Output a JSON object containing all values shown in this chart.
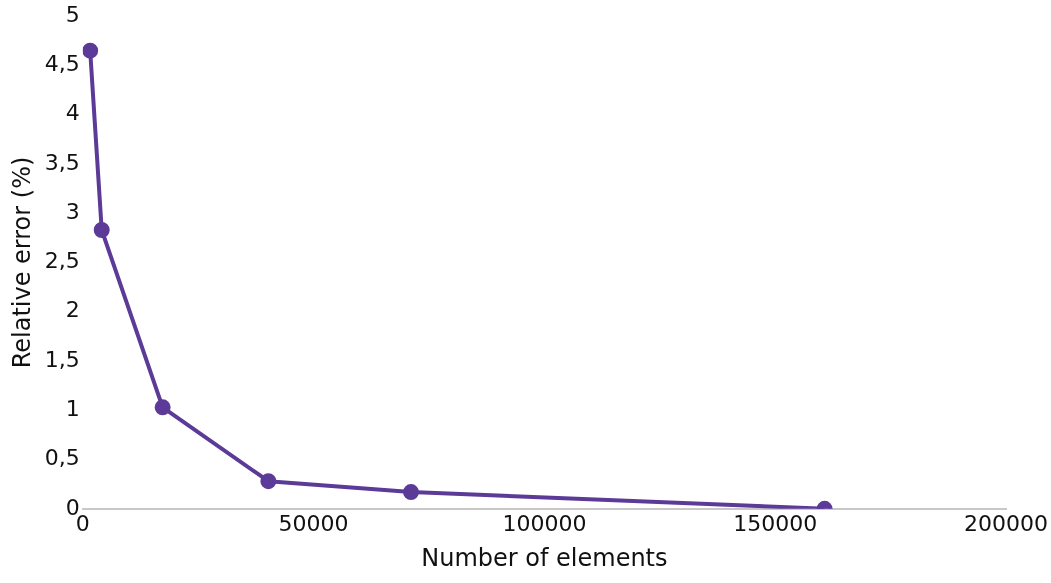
{
  "chart_data": {
    "type": "line",
    "xlabel": "Number of elements",
    "ylabel": "Relative error (%)",
    "x": [
      1600,
      4100,
      17300,
      40200,
      71100,
      160700
    ],
    "series": [
      {
        "color": "#5b3a98",
        "values": [
          4.65,
          2.83,
          1.03,
          0.28,
          0.17,
          0
        ]
      }
    ],
    "xlim": [
      0,
      200000
    ],
    "xticks": [
      0,
      50000,
      100000,
      150000,
      200000
    ],
    "ylim": [
      0,
      5
    ],
    "yticks": [
      0,
      {
        "value": 0.5,
        "label": "0,5"
      },
      1,
      {
        "value": 1.5,
        "label": "1,5"
      },
      2,
      {
        "value": 2.5,
        "label": "2,5"
      },
      3,
      {
        "value": 3.5,
        "label": "3,5"
      },
      4,
      {
        "value": 4.5,
        "label": "4,5"
      },
      5
    ],
    "grid": false,
    "legend": false,
    "marker": "circle",
    "line_style": "solid"
  }
}
